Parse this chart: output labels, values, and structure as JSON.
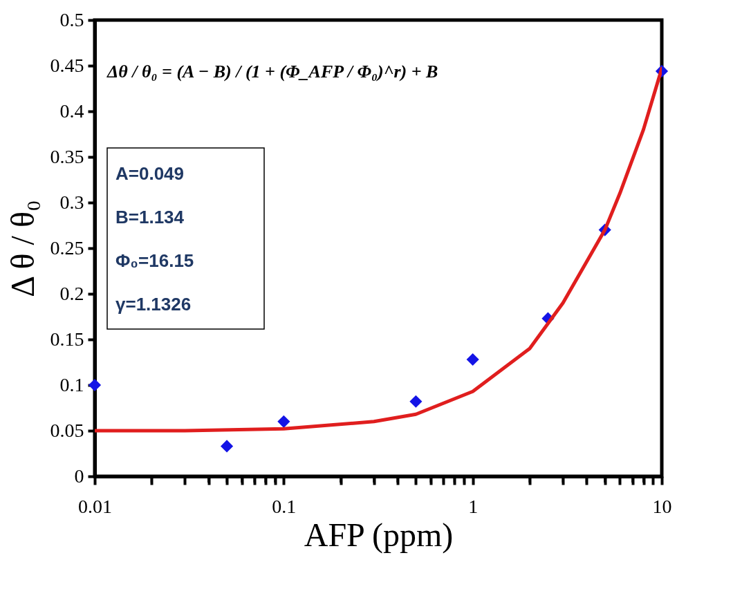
{
  "chart_data": {
    "type": "scatter",
    "xlabel": "AFP (ppm)",
    "ylabel": "Δ θ / θ₀",
    "log": "x",
    "xlim": [
      0.01,
      10
    ],
    "ylim": [
      0,
      0.5
    ],
    "xticks": [
      0.01,
      {
        "value": 0.02,
        "label": null
      },
      {
        "value": 0.03,
        "label": null
      },
      {
        "value": 0.04,
        "label": null
      },
      {
        "value": 0.05,
        "label": null
      },
      {
        "value": 0.06,
        "label": null
      },
      {
        "value": 0.07,
        "label": null
      },
      {
        "value": 0.08,
        "label": null
      },
      {
        "value": 0.09,
        "label": null
      },
      0.1,
      {
        "value": 0.2,
        "label": null
      },
      {
        "value": 0.3,
        "label": null
      },
      {
        "value": 0.4,
        "label": null
      },
      {
        "value": 0.5,
        "label": null
      },
      {
        "value": 0.6,
        "label": null
      },
      {
        "value": 0.7,
        "label": null
      },
      {
        "value": 0.8,
        "label": null
      },
      {
        "value": 0.9,
        "label": null
      },
      1,
      {
        "value": 2,
        "label": null
      },
      {
        "value": 3,
        "label": null
      },
      {
        "value": 4,
        "label": null
      },
      {
        "value": 5,
        "label": null
      },
      {
        "value": 6,
        "label": null
      },
      {
        "value": 7,
        "label": null
      },
      {
        "value": 8,
        "label": null
      },
      {
        "value": 9,
        "label": null
      },
      10
    ],
    "yticks": [
      0,
      0.05,
      0.1,
      0.15,
      0.2,
      0.25,
      0.3,
      0.35,
      0.4,
      0.45,
      0.5
    ],
    "grid": false,
    "series": [
      {
        "marker": "diamond",
        "color": "#1414e6",
        "x": [
          0.01,
          0.05,
          0.1,
          0.5,
          1,
          2.5,
          5,
          10
        ],
        "values": [
          0.1,
          0.033,
          0.06,
          0.082,
          0.128,
          0.173,
          0.27,
          0.444
        ]
      },
      {
        "type": "line",
        "line_style": "solid",
        "marker": "none",
        "color": "#e01e1e",
        "x": [
          0.01,
          0.03,
          0.1,
          0.3,
          0.5,
          1,
          2,
          3,
          4,
          5,
          6,
          8,
          10
        ],
        "values": [
          0.05,
          0.05,
          0.052,
          0.06,
          0.068,
          0.093,
          0.14,
          0.19,
          0.235,
          0.27,
          0.31,
          0.38,
          0.447
        ]
      }
    ],
    "annotations": [
      "Δθ / θ₀ = (A − B) / (1 + (Φ_AFP / Φ₀)^r) + B",
      "A=0.049",
      "B=1.134",
      "Φ₀=16.15",
      "γ=1.1326"
    ]
  }
}
